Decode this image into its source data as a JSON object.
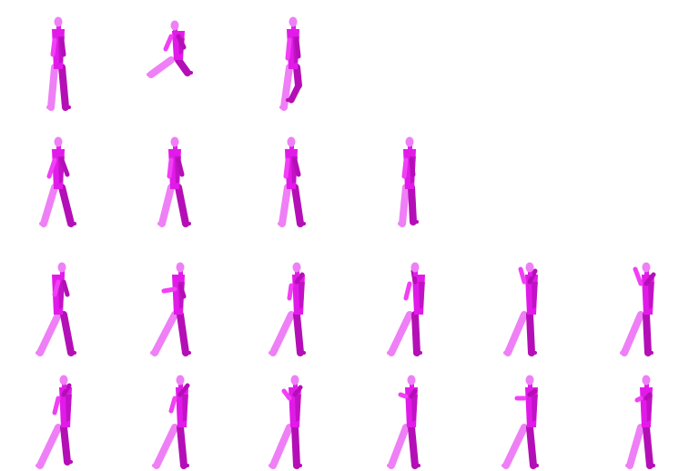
{
  "sheet": {
    "background": "#ffffff",
    "colors": {
      "light": "#ef7ff6",
      "mid": "#e21ae9",
      "dark": "#b40fb6",
      "bright": "#f23ff5"
    },
    "rows": [
      {
        "poses": [
          "stand-idle",
          "crouch-kick",
          "step-bent-knee"
        ]
      },
      {
        "poses": [
          "walk-stride-a",
          "walk-stride-b",
          "walk-stride-c",
          "walk-pass"
        ]
      },
      {
        "poses": [
          "lunge-a",
          "lunge-twist",
          "lunge-reach",
          "lunge-lean",
          "lunge-arms-up",
          "lunge-spin"
        ]
      },
      {
        "poses": [
          "stride-turn-a",
          "stride-turn-b",
          "stride-turn-c",
          "stride-turn-d",
          "stride-turn-e",
          "stride-turn-f"
        ]
      }
    ]
  }
}
